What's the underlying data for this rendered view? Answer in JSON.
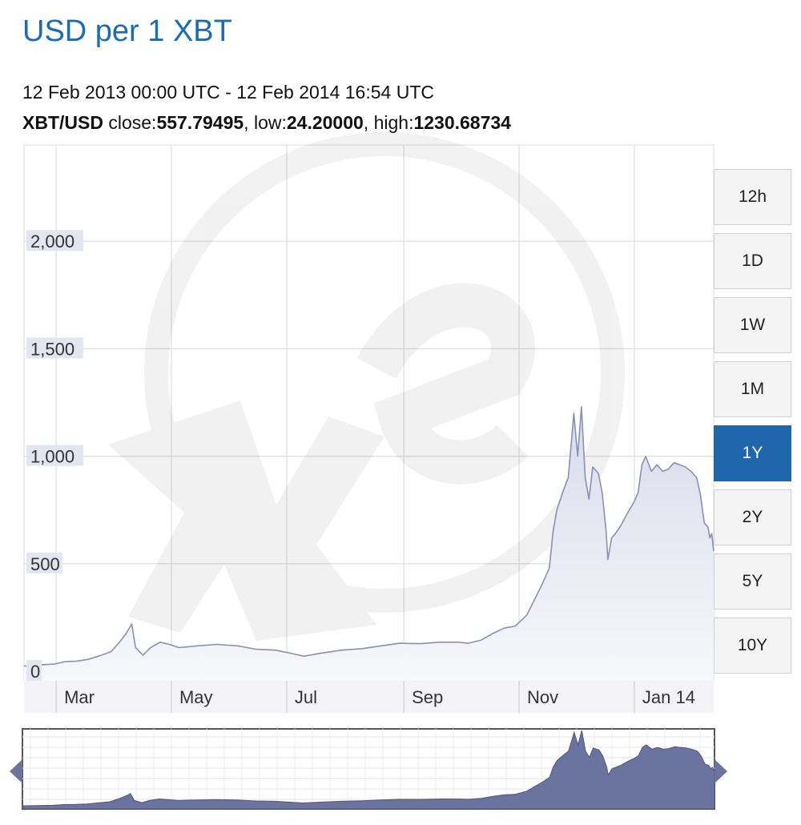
{
  "header": {
    "title": "USD per 1 XBT",
    "date_range": "12 Feb 2013 00:00 UTC - 12 Feb 2014 16:54 UTC",
    "pair": "XBT/USD",
    "close_label": "close:",
    "close_value": "557.79495",
    "low_label": "low:",
    "low_value": "24.20000",
    "high_label": "high:",
    "high_value": "1230.68734",
    "sep": ", "
  },
  "range_buttons": [
    {
      "label": "12h",
      "active": false
    },
    {
      "label": "1D",
      "active": false
    },
    {
      "label": "1W",
      "active": false
    },
    {
      "label": "1M",
      "active": false
    },
    {
      "label": "1Y",
      "active": true
    },
    {
      "label": "2Y",
      "active": false
    },
    {
      "label": "5Y",
      "active": false
    },
    {
      "label": "10Y",
      "active": false
    }
  ],
  "colors": {
    "title": "#1a6db5",
    "active_button": "#1f66ad",
    "line": "#8a90b4",
    "navigator_fill": "#6b739f"
  },
  "chart_data": {
    "type": "area",
    "ylim": [
      0,
      2400
    ],
    "xlim": [
      "2013-02-12",
      "2014-02-12"
    ],
    "y_ticks": [
      0,
      500,
      1000,
      1500,
      2000
    ],
    "y_tick_labels": [
      "0",
      "500",
      "1,000",
      "1,500",
      "2,000"
    ],
    "x_tick_labels": [
      {
        "label": "Mar",
        "date": "2013-03-01"
      },
      {
        "label": "May",
        "date": "2013-05-01"
      },
      {
        "label": "Jul",
        "date": "2013-07-01"
      },
      {
        "label": "Sep",
        "date": "2013-09-01"
      },
      {
        "label": "Nov",
        "date": "2013-11-01"
      },
      {
        "label": "Jan 14",
        "date": "2014-01-01"
      }
    ],
    "grid": true,
    "series": [
      {
        "points": [
          [
            "2013-02-12",
            24
          ],
          [
            "2013-02-20",
            29
          ],
          [
            "2013-02-28",
            33
          ],
          [
            "2013-03-06",
            45
          ],
          [
            "2013-03-12",
            47
          ],
          [
            "2013-03-18",
            55
          ],
          [
            "2013-03-24",
            72
          ],
          [
            "2013-03-30",
            90
          ],
          [
            "2013-04-04",
            140
          ],
          [
            "2013-04-07",
            175
          ],
          [
            "2013-04-10",
            220
          ],
          [
            "2013-04-12",
            110
          ],
          [
            "2013-04-16",
            75
          ],
          [
            "2013-04-20",
            110
          ],
          [
            "2013-04-25",
            135
          ],
          [
            "2013-04-30",
            125
          ],
          [
            "2013-05-05",
            110
          ],
          [
            "2013-05-15",
            118
          ],
          [
            "2013-05-25",
            125
          ],
          [
            "2013-06-05",
            118
          ],
          [
            "2013-06-15",
            102
          ],
          [
            "2013-06-25",
            98
          ],
          [
            "2013-07-05",
            80
          ],
          [
            "2013-07-10",
            70
          ],
          [
            "2013-07-20",
            85
          ],
          [
            "2013-07-30",
            98
          ],
          [
            "2013-08-10",
            105
          ],
          [
            "2013-08-20",
            118
          ],
          [
            "2013-08-30",
            130
          ],
          [
            "2013-09-10",
            128
          ],
          [
            "2013-09-20",
            135
          ],
          [
            "2013-09-30",
            135
          ],
          [
            "2013-10-05",
            130
          ],
          [
            "2013-10-12",
            145
          ],
          [
            "2013-10-18",
            175
          ],
          [
            "2013-10-24",
            200
          ],
          [
            "2013-10-30",
            210
          ],
          [
            "2013-11-05",
            260
          ],
          [
            "2013-11-09",
            330
          ],
          [
            "2013-11-13",
            400
          ],
          [
            "2013-11-17",
            480
          ],
          [
            "2013-11-19",
            650
          ],
          [
            "2013-11-21",
            750
          ],
          [
            "2013-11-24",
            830
          ],
          [
            "2013-11-27",
            900
          ],
          [
            "2013-11-29",
            1100
          ],
          [
            "2013-11-30",
            1200
          ],
          [
            "2013-12-02",
            1000
          ],
          [
            "2013-12-04",
            1230
          ],
          [
            "2013-12-06",
            900
          ],
          [
            "2013-12-08",
            800
          ],
          [
            "2013-12-10",
            950
          ],
          [
            "2013-12-13",
            920
          ],
          [
            "2013-12-15",
            830
          ],
          [
            "2013-12-17",
            660
          ],
          [
            "2013-12-18",
            520
          ],
          [
            "2013-12-20",
            620
          ],
          [
            "2013-12-22",
            640
          ],
          [
            "2013-12-25",
            680
          ],
          [
            "2013-12-28",
            730
          ],
          [
            "2014-01-01",
            790
          ],
          [
            "2014-01-03",
            830
          ],
          [
            "2014-01-05",
            960
          ],
          [
            "2014-01-07",
            1000
          ],
          [
            "2014-01-10",
            930
          ],
          [
            "2014-01-13",
            960
          ],
          [
            "2014-01-16",
            930
          ],
          [
            "2014-01-19",
            940
          ],
          [
            "2014-01-22",
            970
          ],
          [
            "2014-01-25",
            960
          ],
          [
            "2014-01-28",
            950
          ],
          [
            "2014-01-31",
            930
          ],
          [
            "2014-02-03",
            900
          ],
          [
            "2014-02-05",
            820
          ],
          [
            "2014-02-07",
            690
          ],
          [
            "2014-02-09",
            670
          ],
          [
            "2014-02-10",
            620
          ],
          [
            "2014-02-11",
            640
          ],
          [
            "2014-02-12",
            558
          ]
        ]
      }
    ]
  }
}
